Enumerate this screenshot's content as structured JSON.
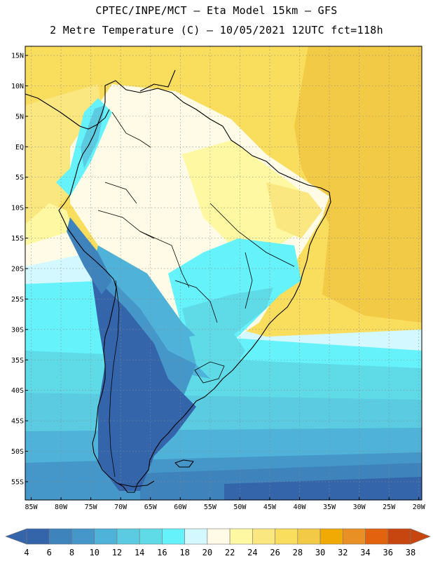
{
  "header": {
    "line1": "CPTEC/INPE/MCT –  Eta Model 15km – GFS",
    "line2": "2 Metre Temperature (C) – 10/05/2021 12UTC fct=118h"
  },
  "map": {
    "lon_min": -86,
    "lon_max": -19.5,
    "lat_min": -58,
    "lat_max": 16.5,
    "lat_ticks": [
      "15N",
      "10N",
      "5N",
      "EQ",
      "5S",
      "10S",
      "15S",
      "20S",
      "25S",
      "30S",
      "35S",
      "40S",
      "45S",
      "50S",
      "55S"
    ],
    "lat_values": [
      15,
      10,
      5,
      0,
      -5,
      -10,
      -15,
      -20,
      -25,
      -30,
      -35,
      -40,
      -45,
      -50,
      -55
    ],
    "lon_ticks": [
      "85W",
      "80W",
      "75W",
      "70W",
      "65W",
      "60W",
      "55W",
      "50W",
      "45W",
      "40W",
      "35W",
      "30W",
      "25W",
      "20W"
    ],
    "lon_values": [
      -85,
      -80,
      -75,
      -70,
      -65,
      -60,
      -55,
      -50,
      -45,
      -40,
      -35,
      -30,
      -25,
      -20
    ],
    "colors": {
      "t4": "#3465aa",
      "t6": "#3f83bd",
      "t8": "#4497c8",
      "t10": "#4fb2d8",
      "t12": "#5acbe0",
      "t14": "#5fdbe8",
      "t16": "#66f2fb",
      "t18": "#d3f8ff",
      "t20": "#fffbe6",
      "t22": "#fff8a2",
      "t24": "#fbe77f",
      "t26": "#f9dd5c",
      "t28": "#f3ca45",
      "t30": "#f1aa03",
      "t32": "#e99024",
      "t34": "#e2620d",
      "t36": "#c7450e"
    }
  },
  "colorbar": {
    "labels": [
      "4",
      "6",
      "8",
      "10",
      "12",
      "14",
      "16",
      "18",
      "20",
      "22",
      "24",
      "26",
      "28",
      "30",
      "32",
      "34",
      "36",
      "38"
    ],
    "colors": [
      "#3465aa",
      "#3f83bd",
      "#4497c8",
      "#4fb2d8",
      "#5acbe0",
      "#5fdbe8",
      "#66f2fb",
      "#d3f8ff",
      "#fffbe6",
      "#fff8a2",
      "#fbe77f",
      "#f9dd5c",
      "#f3ca45",
      "#f1aa03",
      "#e99024",
      "#e2620d",
      "#c7450e"
    ],
    "left_arrow_color": "#3465aa",
    "right_arrow_color": "#c7450e"
  }
}
